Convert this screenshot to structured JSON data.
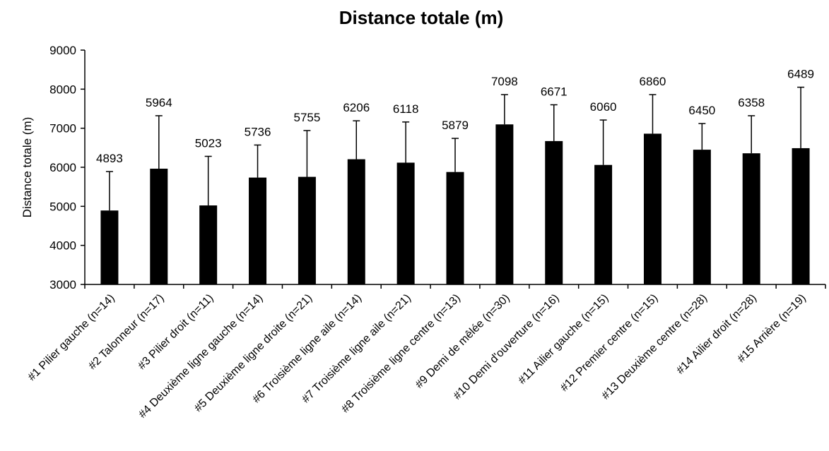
{
  "chart_data": {
    "type": "bar",
    "title": "Distance totale (m)",
    "ylabel": "Distance totale (m)",
    "xlabel": "",
    "ylim": [
      3000,
      9000
    ],
    "yticks": [
      3000,
      4000,
      5000,
      6000,
      7000,
      8000,
      9000
    ],
    "grid": false,
    "bar_color": "#000000",
    "categories": [
      "#1 Pilier gauche (n=14)",
      "#2 Talonneur (n=17)",
      "#3 Pilier droit (n=11)",
      "#4 Deuxième ligne gauche (n=14)",
      "#5 Deuxième ligne droite (n=21)",
      "#6 Troisième ligne aile (n=14)",
      "#7 Troisième ligne aile (n=21)",
      "#8 Troisième ligne centre (n=13)",
      "#9 Demi de mêlée (n=30)",
      "#10 Demi d'ouverture (n=16)",
      "#11 Ailier gauche (n=15)",
      "#12 Premier centre (n=15)",
      "#13 Deuxième centre (n=28)",
      "#14 Ailier droit (n=28)",
      "#15 Arrière (n=19)"
    ],
    "values": [
      4893,
      5964,
      5023,
      5736,
      5755,
      6206,
      6118,
      5879,
      7098,
      6671,
      6060,
      6860,
      6450,
      6358,
      6489
    ],
    "error_upper": [
      5890,
      7320,
      6280,
      6570,
      6940,
      7190,
      7160,
      6740,
      7860,
      7600,
      7210,
      7860,
      7120,
      7320,
      8050
    ],
    "data_labels": [
      "4893",
      "5964",
      "5023",
      "5736",
      "5755",
      "6206",
      "6118",
      "5879",
      "7098",
      "6671",
      "6060",
      "6860",
      "6450",
      "6358",
      "6489"
    ]
  }
}
